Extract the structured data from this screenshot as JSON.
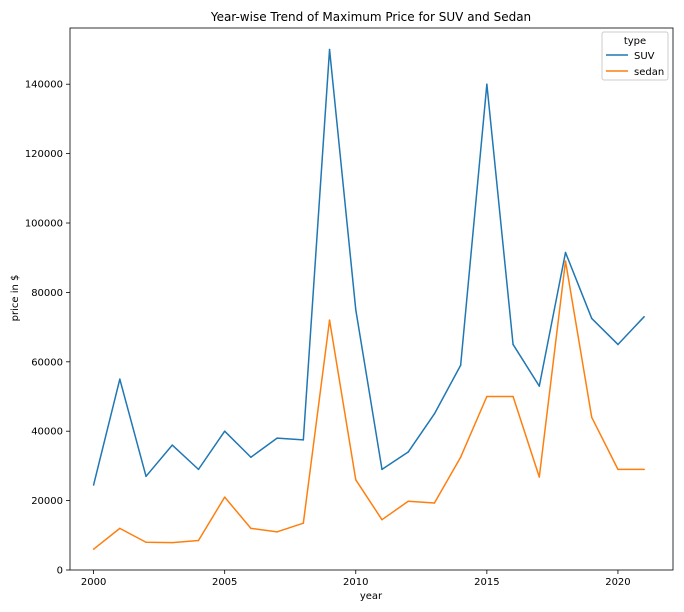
{
  "chart_data": {
    "type": "line",
    "title": "Year-wise Trend of Maximum Price for SUV and Sedan",
    "xlabel": "year",
    "ylabel": "price in $",
    "xlim": [
      1999.1,
      2022.1
    ],
    "ylim": [
      0,
      156200
    ],
    "xticks": [
      2000,
      2005,
      2010,
      2015,
      2020
    ],
    "yticks": [
      0,
      20000,
      40000,
      60000,
      80000,
      100000,
      120000,
      140000
    ],
    "grid": false,
    "legend": {
      "title": "type",
      "placement": "top-right"
    },
    "x": [
      2000,
      2001,
      2002,
      2003,
      2004,
      2005,
      2006,
      2007,
      2008,
      2009,
      2010,
      2011,
      2012,
      2013,
      2014,
      2015,
      2016,
      2017,
      2018,
      2019,
      2020,
      2021
    ],
    "series": [
      {
        "name": "SUV",
        "color": "#1f77b4",
        "values": [
          24500,
          55000,
          27000,
          36000,
          29000,
          40000,
          32500,
          38000,
          37500,
          150000,
          75000,
          29000,
          34000,
          45000,
          59000,
          140000,
          65000,
          53000,
          91500,
          72500,
          65000,
          73000
        ]
      },
      {
        "name": "sedan",
        "color": "#ff7f0e",
        "values": [
          6000,
          12000,
          8000,
          7900,
          8500,
          21000,
          12000,
          11000,
          13500,
          72000,
          26000,
          14500,
          19800,
          19300,
          32500,
          50000,
          50000,
          26800,
          89000,
          44000,
          29000,
          29000
        ]
      }
    ]
  }
}
